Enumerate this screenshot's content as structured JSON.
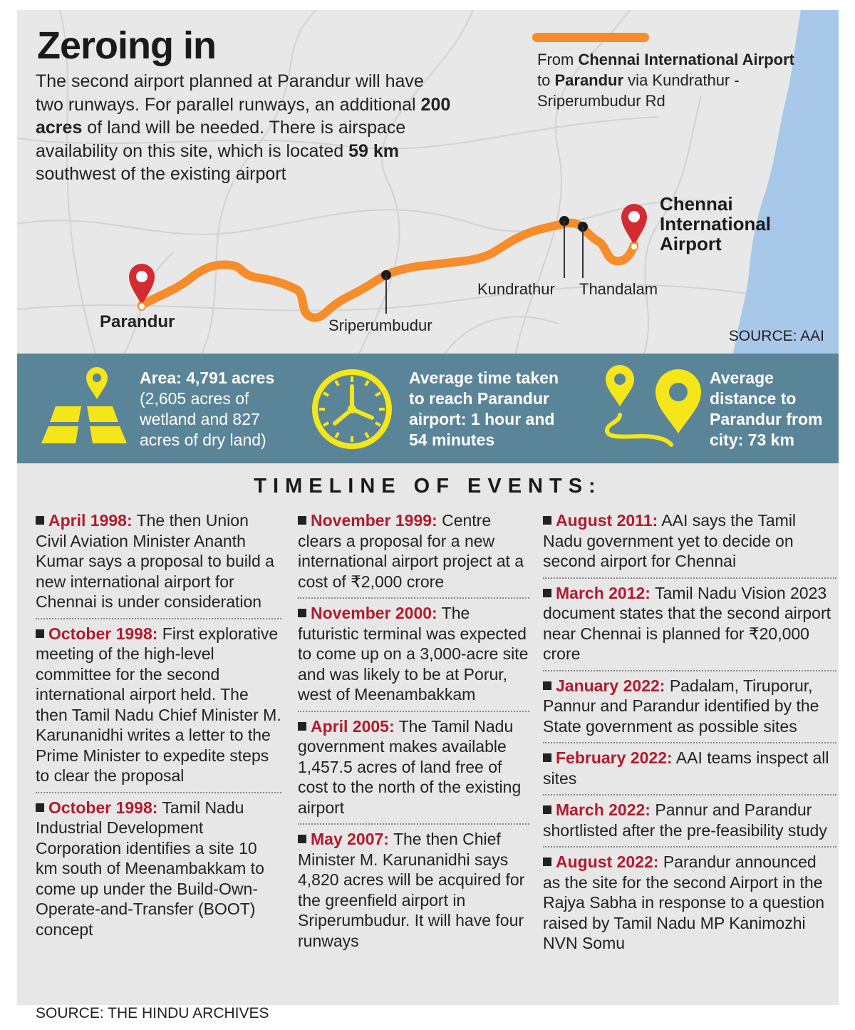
{
  "map": {
    "title": "Zeroing in",
    "intro": {
      "p1": "The second airport planned at Parandur will have two runways. For parallel runways, an additional ",
      "b1": "200 acres",
      "p2": " of land will be needed. There is airspace availability on this site, which is located ",
      "b2": "59 km",
      "p3": " southwest of the existing airport"
    },
    "legend": {
      "t1": "From ",
      "b1": "Chennai International Airport",
      "t2": " to ",
      "b2": "Parandur",
      "t3": " via Kundrathur - Sriperumbudur Rd"
    },
    "places": {
      "parandur": "Parandur",
      "sriperumbudur": "Sriperumbudur",
      "kundrathur": "Kundrathur",
      "thandalam": "Thandalam",
      "airport_line1": "Chennai",
      "airport_line2": "International",
      "airport_line3": "Airport"
    },
    "source": "SOURCE: AAI",
    "colors": {
      "route": "#f68c2a",
      "sea": "#a8c8ea",
      "land": "#e8e8e8",
      "pin": "#d42b32"
    }
  },
  "stats": {
    "area": {
      "bold": "Area: 4,791 acres",
      "light": "(2,605 acres of wetland and 827 acres of dry land)",
      "icon": "map-area-icon"
    },
    "time": {
      "text": "Average time taken to reach Parandur airport: 1 hour and 54 minutes",
      "icon": "clock-icon"
    },
    "distance": {
      "text": "Average distance to Parandur from city: 73 km",
      "icon": "route-pins-icon"
    },
    "colors": {
      "band": "#5a8598",
      "icon": "#f5e61a"
    }
  },
  "timeline": {
    "heading": "TIMELINE OF EVENTS:",
    "col1": [
      {
        "date": "April 1998:",
        "text": " The then Union Civil Aviation Minister Ananth Kumar says a proposal to build a new international airport for Chennai is under consideration"
      },
      {
        "date": "October 1998:",
        "text": " First explorative meeting of the high-level committee for the second international airport held. The then Tamil Nadu Chief Minister M. Karunanidhi writes a letter to the Prime Minister to expedite steps to clear the proposal"
      },
      {
        "date": "October 1998:",
        "text": " Tamil Nadu Industrial Development Corporation identifies a site 10 km south of Meenambakkam to come up under the Build-Own-Operate-and-Transfer (BOOT) concept"
      }
    ],
    "col2": [
      {
        "date": "November 1999:",
        "text": " Centre clears a proposal for a new international airport project at a cost of ₹2,000 crore"
      },
      {
        "date": "November 2000:",
        "text": " The futuristic terminal was expected to come up on a 3,000-acre site and was likely to be at Porur, west of Meenambakkam"
      },
      {
        "date": "April 2005:",
        "text": " The Tamil Nadu government makes available 1,457.5 acres of land free of cost to the north of the existing airport"
      },
      {
        "date": "May 2007:",
        "text": " The then Chief Minister M. Karunanidhi says 4,820 acres will be acquired for the greenfield airport in Sriperumbudur. It will have four runways"
      }
    ],
    "col3": [
      {
        "date": "August 2011:",
        "text": " AAI says the Tamil Nadu government yet to decide on second airport for Chennai"
      },
      {
        "date": "March 2012:",
        "text": " Tamil Nadu Vision 2023 document states that the second airport near Chennai is planned for ₹20,000 crore"
      },
      {
        "date": "January 2022:",
        "text": " Padalam, Tiruporur, Pannur and Parandur identified by the State government as possible sites"
      },
      {
        "date": "February 2022:",
        "text": " AAI teams inspect all sites"
      },
      {
        "date": "March 2022:",
        "text": " Pannur and Parandur shortlisted after the pre-feasibility study"
      },
      {
        "date": "August 2022:",
        "text": " Parandur announced as the site for the second Airport in the Rajya Sabha in response to a question raised by Tamil Nadu MP Kanimozhi NVN Somu"
      }
    ],
    "colors": {
      "date": "#b01c2e",
      "background": "#e7e7e7"
    }
  },
  "footer": {
    "source": "SOURCE: THE HINDU ARCHIVES"
  }
}
